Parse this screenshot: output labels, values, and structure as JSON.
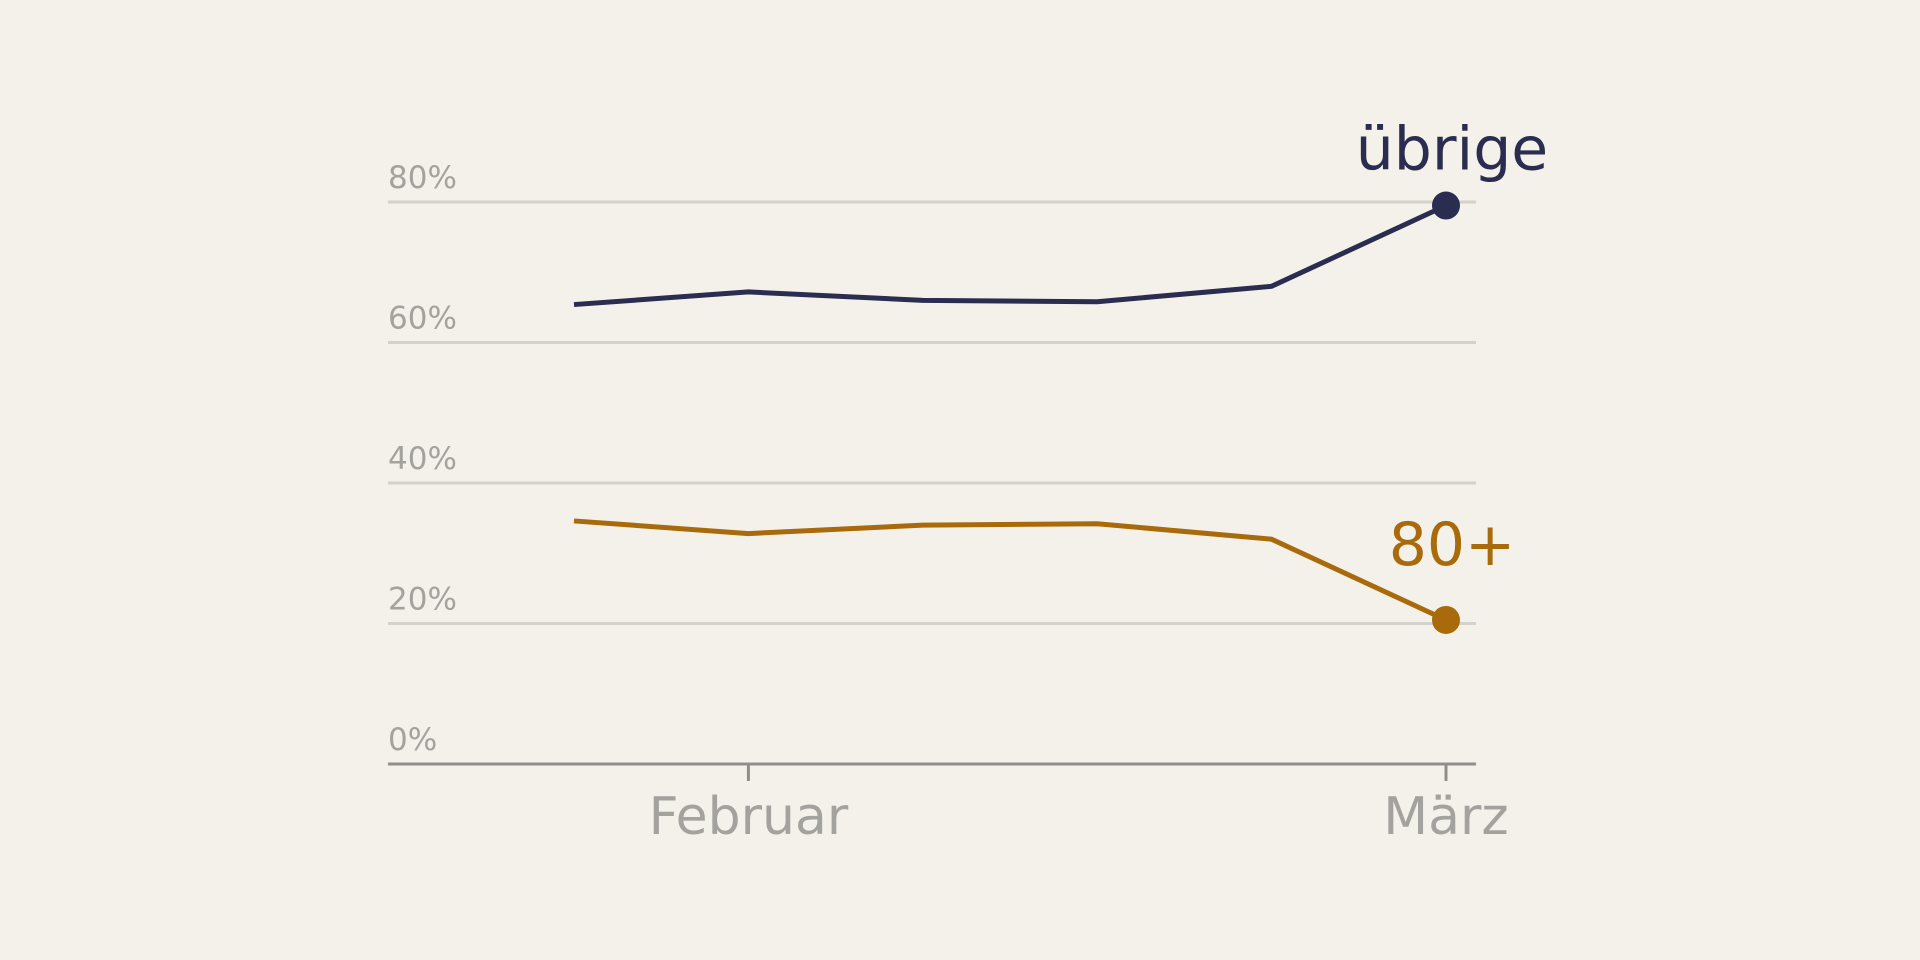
{
  "chart_data": {
    "type": "line",
    "categories": [
      null,
      "Februar",
      null,
      null,
      null,
      "März"
    ],
    "series": [
      {
        "name": "übrige",
        "color": "#2a2d50",
        "values": [
          65.4,
          67.2,
          66.0,
          65.8,
          68.0,
          79.5
        ]
      },
      {
        "name": "80+",
        "color": "#a86a0a",
        "values": [
          34.6,
          32.8,
          34.0,
          34.2,
          32.0,
          20.5
        ]
      }
    ],
    "ylim": [
      0,
      80
    ],
    "yticks": [
      {
        "value": 0,
        "label": "0%"
      },
      {
        "value": 20,
        "label": "20%"
      },
      {
        "value": 40,
        "label": "40%"
      },
      {
        "value": 60,
        "label": "60%"
      },
      {
        "value": 80,
        "label": "80%"
      }
    ],
    "grid": true
  }
}
